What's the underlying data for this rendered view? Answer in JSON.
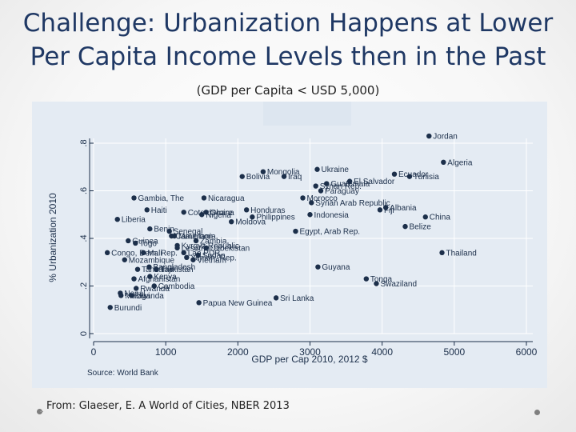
{
  "slide": {
    "title_line1": "Challenge: Urbanization Happens at Lower",
    "title_line2": "Per Capita Income Levels then in the Past",
    "subtitle": "(GDP per Capita < USD 5,000)",
    "credit": "From: Glaeser, E. A World of Cities, NBER 2013"
  },
  "colors": {
    "title": "#1f3864",
    "panel_bg": "#e4ebf3",
    "marker": "#1c2f4a",
    "label": "#1c2f4a"
  },
  "chart_data": {
    "type": "scatter",
    "xlabel": "GDP per Cap 2010, 2012 $",
    "ylabel": "% Urbanization 2010",
    "source_note": "Source: World Bank",
    "xlim": [
      0,
      6000
    ],
    "ylim": [
      0,
      0.8
    ],
    "xticks": [
      0,
      1000,
      2000,
      3000,
      4000,
      5000,
      6000
    ],
    "yticks": [
      0,
      0.2,
      0.4,
      0.6,
      0.8
    ],
    "xtick_labels": [
      "0",
      "1000",
      "2000",
      "3000",
      "4000",
      "5000",
      "6000"
    ],
    "ytick_labels": [
      "0",
      ".2",
      ".4",
      ".6",
      ".8"
    ],
    "grid": true,
    "points": [
      {
        "label": "Jordan",
        "x": 4650,
        "y": 0.83
      },
      {
        "label": "Algeria",
        "x": 4850,
        "y": 0.72
      },
      {
        "label": "Ecuador",
        "x": 4170,
        "y": 0.67
      },
      {
        "label": "Tunisia",
        "x": 4380,
        "y": 0.66
      },
      {
        "label": "Mongolia",
        "x": 2350,
        "y": 0.68
      },
      {
        "label": "Bolivia",
        "x": 2060,
        "y": 0.66
      },
      {
        "label": "Iraq",
        "x": 2640,
        "y": 0.66
      },
      {
        "label": "Ukraine",
        "x": 3100,
        "y": 0.69
      },
      {
        "label": "El Salvador",
        "x": 3550,
        "y": 0.64
      },
      {
        "label": "Guatemala",
        "x": 3230,
        "y": 0.63
      },
      {
        "label": "Syrian Rep.",
        "x": 3080,
        "y": 0.62
      },
      {
        "label": "Paraguay",
        "x": 3150,
        "y": 0.6
      },
      {
        "label": "Gambia, The",
        "x": 560,
        "y": 0.57
      },
      {
        "label": "Nicaragua",
        "x": 1530,
        "y": 0.57
      },
      {
        "label": "Morocco",
        "x": 2900,
        "y": 0.57
      },
      {
        "label": "Syrian Arab Republic",
        "x": 3020,
        "y": 0.55
      },
      {
        "label": "Haiti",
        "x": 740,
        "y": 0.52
      },
      {
        "label": "Cote d'Ivoire",
        "x": 1250,
        "y": 0.51
      },
      {
        "label": "Ghana",
        "x": 1560,
        "y": 0.51
      },
      {
        "label": "Honduras",
        "x": 2120,
        "y": 0.52
      },
      {
        "label": "Fiji",
        "x": 3970,
        "y": 0.52
      },
      {
        "label": "Albania",
        "x": 4050,
        "y": 0.53
      },
      {
        "label": "Indonesia",
        "x": 3000,
        "y": 0.5
      },
      {
        "label": "Liberia",
        "x": 330,
        "y": 0.48
      },
      {
        "label": "Moldova",
        "x": 1910,
        "y": 0.47
      },
      {
        "label": "Philippines",
        "x": 2200,
        "y": 0.49
      },
      {
        "label": "China",
        "x": 4600,
        "y": 0.49
      },
      {
        "label": "Benin",
        "x": 780,
        "y": 0.44
      },
      {
        "label": "Egypt, Arab Rep.",
        "x": 2800,
        "y": 0.43
      },
      {
        "label": "Belize",
        "x": 4320,
        "y": 0.45
      },
      {
        "label": "Cameroon",
        "x": 1080,
        "y": 0.41
      },
      {
        "label": "Mauritania",
        "x": 1120,
        "y": 0.41
      },
      {
        "label": "Senegal",
        "x": 1050,
        "y": 0.43
      },
      {
        "label": "Zambia",
        "x": 1420,
        "y": 0.39
      },
      {
        "label": "Kyrgyz Republic",
        "x": 1160,
        "y": 0.37
      },
      {
        "label": "Lesotho",
        "x": 1160,
        "y": 0.36
      },
      {
        "label": "Uzbekistan",
        "x": 1560,
        "y": 0.36
      },
      {
        "label": "Sudan",
        "x": 1450,
        "y": 0.33
      },
      {
        "label": "Guinea",
        "x": 480,
        "y": 0.39
      },
      {
        "label": "Togo",
        "x": 580,
        "y": 0.38
      },
      {
        "label": "Mali",
        "x": 690,
        "y": 0.34
      },
      {
        "label": "Congo, Dem. Rep.",
        "x": 190,
        "y": 0.34
      },
      {
        "label": "Mozambique",
        "x": 430,
        "y": 0.31
      },
      {
        "label": "Nigeria",
        "x": 1500,
        "y": 0.5
      },
      {
        "label": "Lao PDR",
        "x": 1250,
        "y": 0.34
      },
      {
        "label": "Yemen, Rep.",
        "x": 1290,
        "y": 0.32
      },
      {
        "label": "Bangladesh",
        "x": 770,
        "y": 0.28
      },
      {
        "label": "Tanzania",
        "x": 610,
        "y": 0.27
      },
      {
        "label": "Vietnam",
        "x": 1380,
        "y": 0.31
      },
      {
        "label": "Tajikistan",
        "x": 870,
        "y": 0.27
      },
      {
        "label": "Afghanistan",
        "x": 560,
        "y": 0.23
      },
      {
        "label": "Kenya",
        "x": 780,
        "y": 0.24
      },
      {
        "label": "Rwanda",
        "x": 590,
        "y": 0.19
      },
      {
        "label": "Cambodia",
        "x": 840,
        "y": 0.2
      },
      {
        "label": "Nepal",
        "x": 370,
        "y": 0.17
      },
      {
        "label": "Malawi",
        "x": 380,
        "y": 0.16
      },
      {
        "label": "Uganda",
        "x": 530,
        "y": 0.16
      },
      {
        "label": "Burundi",
        "x": 230,
        "y": 0.11
      },
      {
        "label": "Papua New Guinea",
        "x": 1460,
        "y": 0.13
      },
      {
        "label": "Sri Lanka",
        "x": 2530,
        "y": 0.15
      },
      {
        "label": "Guyana",
        "x": 3110,
        "y": 0.28
      },
      {
        "label": "Tonga",
        "x": 3780,
        "y": 0.23
      },
      {
        "label": "Swaziland",
        "x": 3920,
        "y": 0.21
      },
      {
        "label": "Thailand",
        "x": 4830,
        "y": 0.34
      }
    ]
  }
}
